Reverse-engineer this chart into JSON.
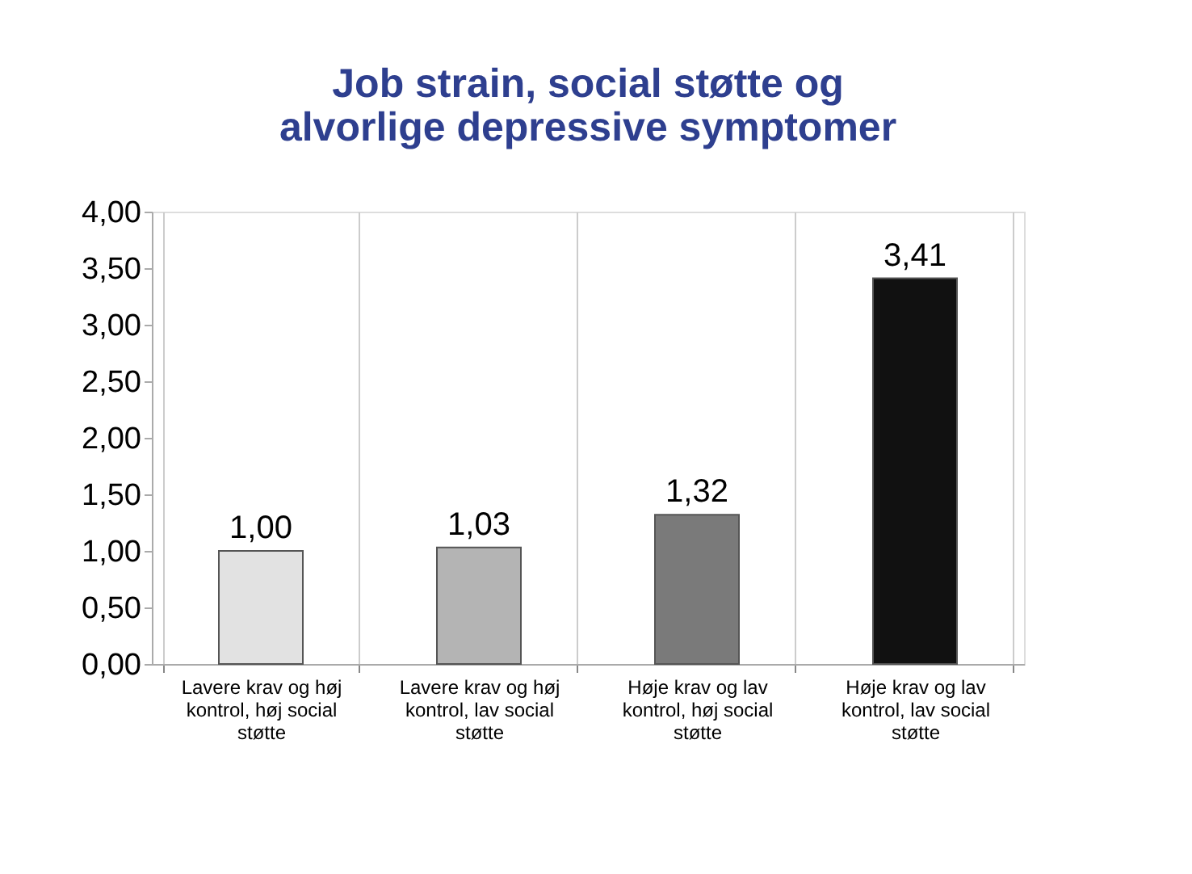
{
  "chart_data": {
    "type": "bar",
    "title": "Job strain, social støtte og alvorlige depressive symptomer",
    "categories": [
      "Lavere krav og høj kontrol, høj social støtte",
      "Lavere krav og høj kontrol, lav social støtte",
      "Høje krav og lav kontrol, høj social støtte",
      "Høje krav og lav kontrol, lav social støtte"
    ],
    "values": [
      1.0,
      1.03,
      1.32,
      3.41
    ],
    "value_labels": [
      "1,00",
      "1,03",
      "1,32",
      "3,41"
    ],
    "colors": [
      "#e2e2e2",
      "#b4b4b4",
      "#7a7a7a",
      "#111111"
    ],
    "ylim": [
      0,
      4
    ],
    "yticks": [
      {
        "value": 0,
        "label": "0,00"
      },
      {
        "value": 0.5,
        "label": "0,50"
      },
      {
        "value": 1,
        "label": "1,00"
      },
      {
        "value": 1.5,
        "label": "1,50"
      },
      {
        "value": 2,
        "label": "2,00"
      },
      {
        "value": 2.5,
        "label": "2,50"
      },
      {
        "value": 3,
        "label": "3,00"
      },
      {
        "value": 3.5,
        "label": "3,50"
      },
      {
        "value": 4,
        "label": "4,00"
      }
    ],
    "grid": "x"
  }
}
